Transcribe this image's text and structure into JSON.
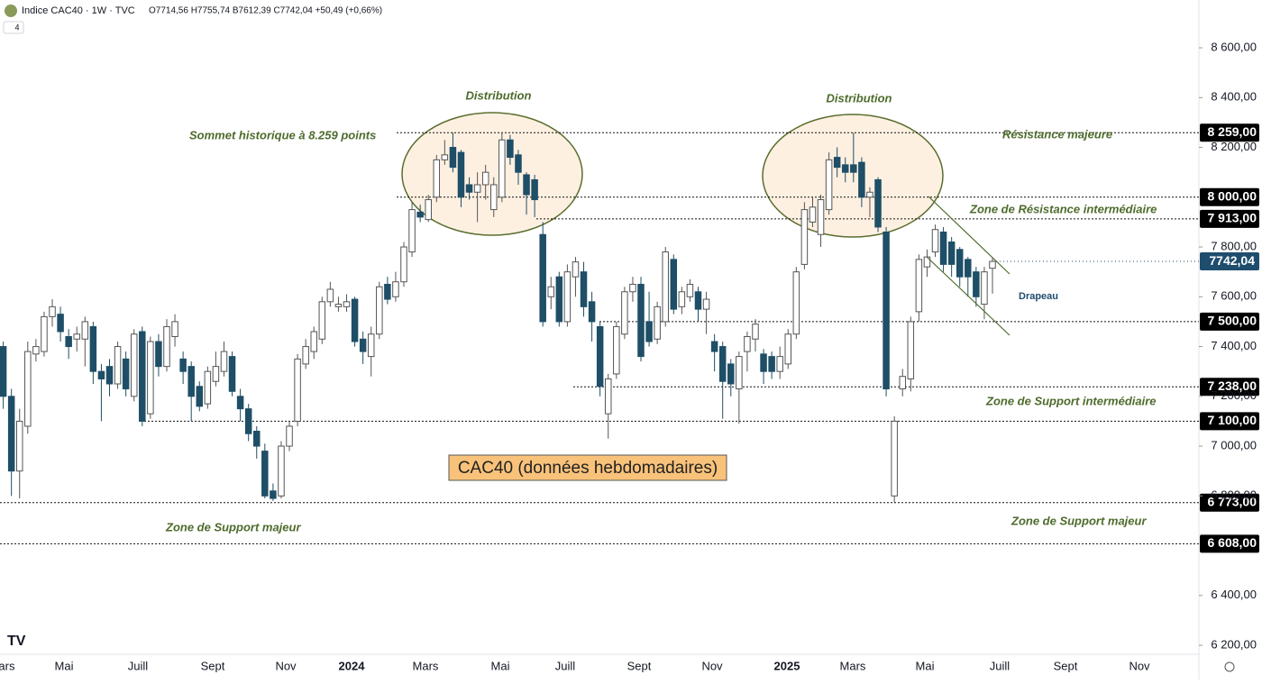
{
  "header": {
    "title": "Indice CAC40 · 1W · TVC",
    "ohlc": "O7714,56 H7755,74 B7612,39 C7742,04 +50,49 (+0,66%)",
    "badge": "4"
  },
  "chart_data": {
    "type": "candlestick",
    "ylim": [
      6164,
      8792
    ],
    "yticks": [
      {
        "value": 6200,
        "label": "6 200,00"
      },
      {
        "value": 6400,
        "label": "6 400,00"
      },
      {
        "value": 6800,
        "label": "6 800,00"
      },
      {
        "value": 7000,
        "label": "7 000,00"
      },
      {
        "value": 7200,
        "label": "7 200,00"
      },
      {
        "value": 7400,
        "label": "7 400,00"
      },
      {
        "value": 7600,
        "label": "7 600,00"
      },
      {
        "value": 7800,
        "label": "7 800,00"
      },
      {
        "value": 8200,
        "label": "8 200,00"
      },
      {
        "value": 8400,
        "label": "8 400,00"
      },
      {
        "value": 8600,
        "label": "8 600,00"
      }
    ],
    "x_labels": [
      "Mars",
      "Mai",
      "Juill",
      "Sept",
      "Nov",
      "2024",
      "Mars",
      "Mai",
      "Juill",
      "Sept",
      "Nov",
      "2025",
      "Mars",
      "Mai",
      "Juill",
      "Sept",
      "Nov"
    ],
    "up_color": "#ffffff",
    "down_color": "#1f4e67",
    "open": [
      7400,
      7200,
      6900,
      7080,
      7370,
      7380,
      7520,
      7530,
      7440,
      7430,
      7430,
      7480,
      7300,
      7320,
      7250,
      7350,
      7200,
      7460,
      7130,
      7420,
      7320,
      7440,
      7350,
      7320,
      7240,
      7170,
      7260,
      7300,
      7360,
      7200,
      7150,
      7060,
      6980,
      6820,
      6800,
      7000,
      7100,
      7330,
      7380,
      7430,
      7580,
      7560,
      7560,
      7590,
      7430,
      7360,
      7450,
      7650,
      7600,
      7660,
      7780,
      7940,
      7910,
      8000,
      8150,
      8200,
      8180,
      8050,
      8020,
      8050,
      7950,
      8000,
      8230,
      8170,
      8090,
      8070,
      7850,
      7600,
      7680,
      7500,
      7680,
      7700,
      7580,
      7480,
      7130,
      7290,
      7450,
      7620,
      7650,
      7500,
      7430,
      7500,
      7750,
      7560,
      7600,
      7620,
      7550,
      7420,
      7400,
      7330,
      7230,
      7380,
      7430,
      7370,
      7360,
      7300,
      7330,
      7450,
      7730,
      7900,
      7850,
      7950,
      8160,
      8130,
      8130,
      8140,
      8000,
      8070,
      7860,
      6800,
      7230,
      7270,
      7540,
      7720,
      7780,
      7860,
      7820,
      7790,
      7750,
      7700,
      7570,
      7714.56
    ],
    "high": [
      7420,
      7230,
      7150,
      7420,
      7430,
      7540,
      7590,
      7560,
      7470,
      7480,
      7520,
      7500,
      7330,
      7350,
      7420,
      7380,
      7470,
      7480,
      7440,
      7450,
      7510,
      7530,
      7380,
      7340,
      7260,
      7320,
      7380,
      7420,
      7380,
      7230,
      7170,
      7080,
      7010,
      6850,
      7020,
      7100,
      7370,
      7430,
      7480,
      7600,
      7660,
      7600,
      7610,
      7600,
      7460,
      7480,
      7660,
      7680,
      7700,
      7820,
      7980,
      7970,
      8010,
      8170,
      8230,
      8259,
      8190,
      8080,
      8100,
      8130,
      8080,
      8259,
      8250,
      8190,
      8100,
      8090,
      7900,
      7680,
      7700,
      7730,
      7760,
      7740,
      7620,
      7500,
      7290,
      7500,
      7640,
      7680,
      7680,
      7620,
      7580,
      7800,
      7770,
      7640,
      7670,
      7640,
      7620,
      7450,
      7420,
      7350,
      7380,
      7460,
      7510,
      7390,
      7380,
      7400,
      7470,
      7720,
      7980,
      8000,
      8010,
      8180,
      8200,
      8160,
      8259,
      8160,
      8040,
      8080,
      7880,
      7120,
      7310,
      7520,
      7770,
      7790,
      7890,
      7880,
      7840,
      7800,
      7760,
      7720,
      7720,
      7755.74
    ],
    "low": [
      7150,
      6800,
      6790,
      7050,
      7340,
      7360,
      7480,
      7420,
      7350,
      7380,
      7320,
      7250,
      7100,
      7200,
      7230,
      7200,
      7180,
      7080,
      7110,
      7280,
      7300,
      7400,
      7250,
      7100,
      7140,
      7150,
      7240,
      7280,
      7200,
      7100,
      7020,
      6950,
      6790,
      6780,
      6790,
      6980,
      7080,
      7310,
      7350,
      7410,
      7560,
      7540,
      7540,
      7400,
      7330,
      7280,
      7430,
      7570,
      7580,
      7640,
      7760,
      7900,
      7900,
      7980,
      8130,
      8100,
      7960,
      7990,
      7900,
      7990,
      7920,
      7980,
      8130,
      8050,
      7930,
      7920,
      7480,
      7550,
      7480,
      7480,
      7600,
      7520,
      7420,
      7200,
      7030,
      7270,
      7430,
      7580,
      7340,
      7400,
      7410,
      7480,
      7530,
      7530,
      7580,
      7500,
      7450,
      7300,
      7110,
      7200,
      7090,
      7300,
      7380,
      7250,
      7270,
      7270,
      7310,
      7430,
      7710,
      7880,
      7800,
      7930,
      8080,
      8060,
      8060,
      7960,
      7920,
      7860,
      7200,
      6773,
      7200,
      7220,
      7500,
      7680,
      7760,
      7700,
      7680,
      7640,
      7600,
      7560,
      7510,
      7612.39
    ],
    "close": [
      7200,
      6900,
      7100,
      7380,
      7400,
      7520,
      7560,
      7460,
      7400,
      7450,
      7500,
      7300,
      7270,
      7250,
      7400,
      7230,
      7450,
      7100,
      7420,
      7320,
      7480,
      7500,
      7300,
      7200,
      7160,
      7300,
      7320,
      7380,
      7220,
      7150,
      7050,
      7000,
      6800,
      6790,
      7000,
      7080,
      7350,
      7400,
      7460,
      7580,
      7630,
      7570,
      7580,
      7420,
      7380,
      7450,
      7640,
      7590,
      7660,
      7800,
      7950,
      7920,
      7990,
      8150,
      8170,
      8120,
      8000,
      8020,
      8050,
      8100,
      8050,
      8230,
      8160,
      8100,
      8010,
      7990,
      7500,
      7640,
      7500,
      7700,
      7740,
      7560,
      7500,
      7240,
      7270,
      7480,
      7620,
      7650,
      7360,
      7420,
      7560,
      7780,
      7550,
      7620,
      7650,
      7550,
      7590,
      7380,
      7260,
      7250,
      7360,
      7440,
      7490,
      7300,
      7300,
      7360,
      7450,
      7700,
      7950,
      7960,
      7990,
      8150,
      8120,
      8100,
      8100,
      8000,
      8020,
      7880,
      7230,
      7100,
      7280,
      7500,
      7750,
      7760,
      7870,
      7730,
      7730,
      7680,
      7680,
      7600,
      7700,
      7742.04
    ],
    "levels": [
      {
        "value": 8259,
        "label": "8 259,00"
      },
      {
        "value": 8000,
        "label": "8 000,00"
      },
      {
        "value": 7913,
        "label": "7 913,00"
      },
      {
        "value": 7500,
        "label": "7 500,00"
      },
      {
        "value": 7238,
        "label": "7 238,00"
      },
      {
        "value": 7100,
        "label": "7 100,00"
      },
      {
        "value": 6773,
        "label": "6 773,00"
      },
      {
        "value": 6608,
        "label": "6 608,00"
      }
    ],
    "last_price": {
      "value": 7742.04,
      "label": "7742,04"
    },
    "annotations": [
      "Sommet historique à 8.259 points",
      "Distribution",
      "Distribution",
      "Résistance majeure",
      "Zone de Résistance intermédiaire",
      "Drapeau",
      "Zone de Support intermédiaire",
      "Zone de Support majeur",
      "Zone de Support majeur",
      "CAC40 (données hebdomadaires)"
    ]
  }
}
